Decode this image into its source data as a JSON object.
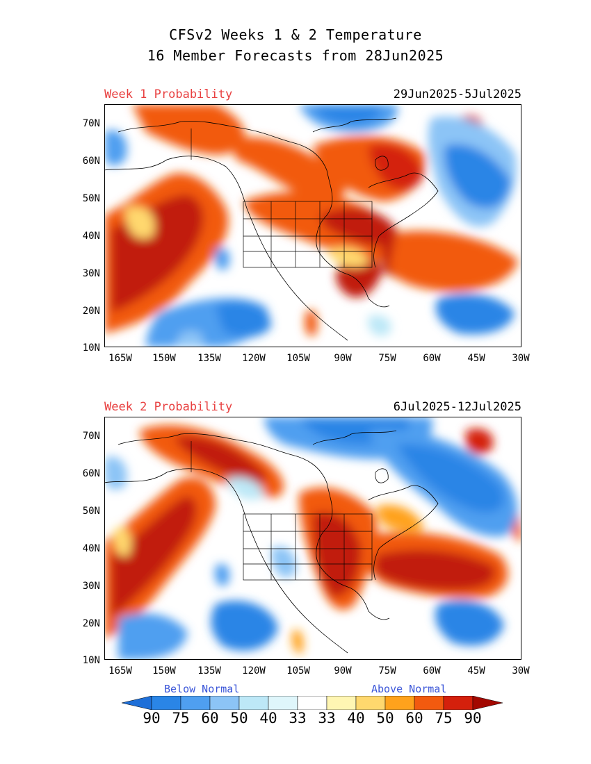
{
  "title_line1": "CFSv2 Weeks 1 & 2 Temperature",
  "title_line2": "16 Member Forecasts from 28Jun2025",
  "panels": [
    {
      "label": "Week 1 Probability",
      "dates": "29Jun2025-5Jul2025"
    },
    {
      "label": "Week 2 Probability",
      "dates": "6Jul2025-12Jul2025"
    }
  ],
  "lat_ticks": [
    "70N",
    "60N",
    "50N",
    "40N",
    "30N",
    "20N",
    "10N"
  ],
  "lon_ticks": [
    "165W",
    "150W",
    "135W",
    "120W",
    "105W",
    "90W",
    "75W",
    "60W",
    "45W",
    "30W"
  ],
  "legend": {
    "below_label": "Below Normal",
    "above_label": "Above Normal",
    "values": [
      "90",
      "75",
      "60",
      "50",
      "40",
      "33",
      "33",
      "40",
      "50",
      "60",
      "75",
      "90"
    ],
    "colors": [
      "#1e6fd8",
      "#2a85e6",
      "#4f9ff0",
      "#8cc4f6",
      "#bde8f7",
      "#dff6fb",
      "#ffffff",
      "#fff6b3",
      "#ffd86e",
      "#ffa21c",
      "#f25a0f",
      "#d4200c",
      "#a30800"
    ]
  },
  "colors": {
    "panel_label": "#e84040",
    "legend_label": "#3a55d8"
  }
}
